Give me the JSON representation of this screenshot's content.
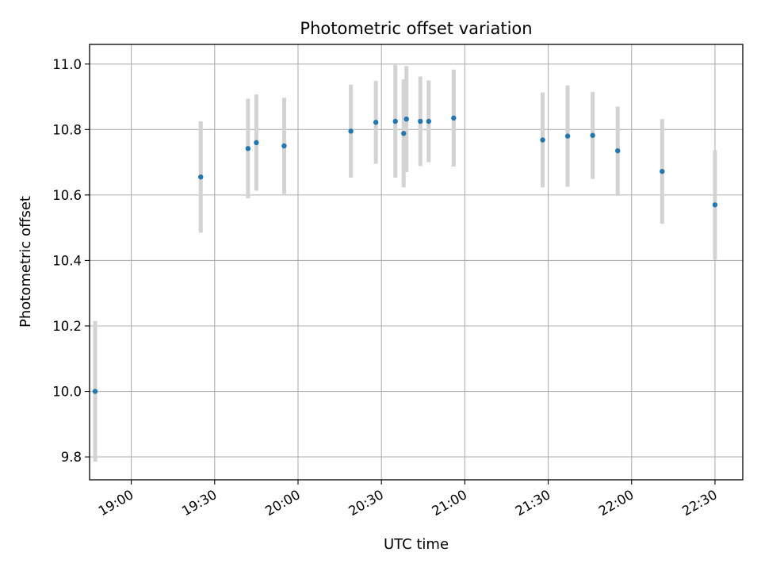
{
  "chart_data": {
    "type": "scatter",
    "title": "Photometric offset variation",
    "xlabel": "UTC time",
    "ylabel": "Photometric offset",
    "x_ticks": [
      "19:00",
      "19:30",
      "20:00",
      "20:30",
      "21:00",
      "21:30",
      "22:00",
      "22:30"
    ],
    "y_ticks": [
      "9.8",
      "10.0",
      "10.2",
      "10.4",
      "10.6",
      "10.8",
      "11.0"
    ],
    "xlim": [
      "18:45",
      "22:40"
    ],
    "ylim": [
      9.73,
      11.06
    ],
    "grid": true,
    "marker_color": "#1f77b4",
    "errorbar_color": "#d3d3d3",
    "points": [
      {
        "t": "18:47",
        "y": 10.0,
        "err": 0.215
      },
      {
        "t": "19:25",
        "y": 10.655,
        "err": 0.17
      },
      {
        "t": "19:42",
        "y": 10.742,
        "err": 0.152
      },
      {
        "t": "19:45",
        "y": 10.76,
        "err": 0.147
      },
      {
        "t": "19:55",
        "y": 10.75,
        "err": 0.147
      },
      {
        "t": "20:19",
        "y": 10.795,
        "err": 0.142
      },
      {
        "t": "20:28",
        "y": 10.822,
        "err": 0.127
      },
      {
        "t": "20:35",
        "y": 10.825,
        "err": 0.172
      },
      {
        "t": "20:38",
        "y": 10.788,
        "err": 0.165
      },
      {
        "t": "20:39",
        "y": 10.832,
        "err": 0.162
      },
      {
        "t": "20:44",
        "y": 10.825,
        "err": 0.137
      },
      {
        "t": "20:47",
        "y": 10.825,
        "err": 0.125
      },
      {
        "t": "20:56",
        "y": 10.835,
        "err": 0.148
      },
      {
        "t": "21:28",
        "y": 10.768,
        "err": 0.145
      },
      {
        "t": "21:37",
        "y": 10.78,
        "err": 0.155
      },
      {
        "t": "21:46",
        "y": 10.782,
        "err": 0.133
      },
      {
        "t": "21:55",
        "y": 10.735,
        "err": 0.135
      },
      {
        "t": "22:11",
        "y": 10.672,
        "err": 0.16
      },
      {
        "t": "22:30",
        "y": 10.57,
        "err": 0.167
      }
    ]
  }
}
